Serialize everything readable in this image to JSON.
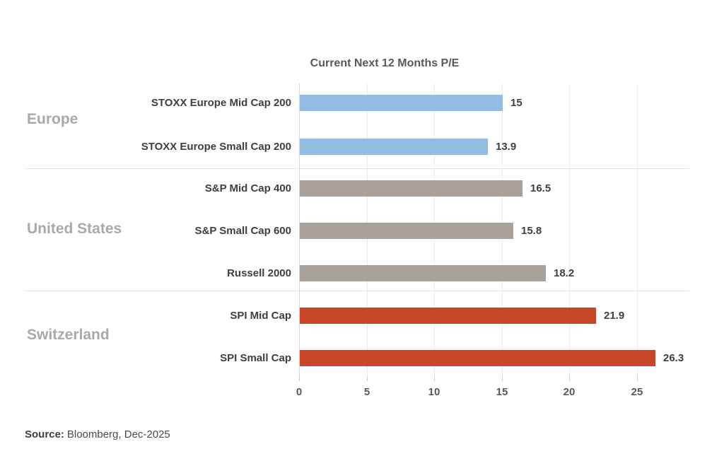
{
  "chart_data": {
    "type": "bar",
    "orientation": "horizontal",
    "title": "Current Next 12 Months P/E",
    "xlabel": "",
    "ylabel": "",
    "xlim": [
      0,
      28.9
    ],
    "xticks": [
      0,
      5,
      10,
      15,
      20,
      25
    ],
    "xtick_labels": [
      "0",
      "5",
      "10",
      "15",
      "20",
      "25"
    ],
    "grid": "vertical",
    "legend": "none",
    "value_labels": true,
    "groups": [
      {
        "name": "Europe",
        "color": "#92BCE1",
        "bars": [
          {
            "label": "STOXX Europe Mid Cap 200",
            "value": 15,
            "display": "15"
          },
          {
            "label": "STOXX Europe Small Cap 200",
            "value": 13.9,
            "display": "13.9"
          }
        ]
      },
      {
        "name": "United States",
        "color": "#A9A29A",
        "bars": [
          {
            "label": "S&P Mid Cap 400",
            "value": 16.5,
            "display": "16.5"
          },
          {
            "label": "S&P Small Cap 600",
            "value": 15.8,
            "display": "15.8"
          },
          {
            "label": "Russell 2000",
            "value": 18.2,
            "display": "18.2"
          }
        ]
      },
      {
        "name": "Switzerland",
        "color": "#C84628",
        "bars": [
          {
            "label": "SPI Mid Cap",
            "value": 21.9,
            "display": "21.9"
          },
          {
            "label": "SPI Small Cap",
            "value": 26.3,
            "display": "26.3"
          }
        ]
      }
    ],
    "source": {
      "label": "Source:",
      "text": "Bloomberg, Dec-2025"
    }
  },
  "colors": {
    "europe_bar": "#92BCE1",
    "united_states_bar": "#A9A29A",
    "switzerland_bar": "#C84628",
    "title_text": "#58595B",
    "label_text": "#3F3F3F",
    "group_text": "#A9A9A9"
  }
}
